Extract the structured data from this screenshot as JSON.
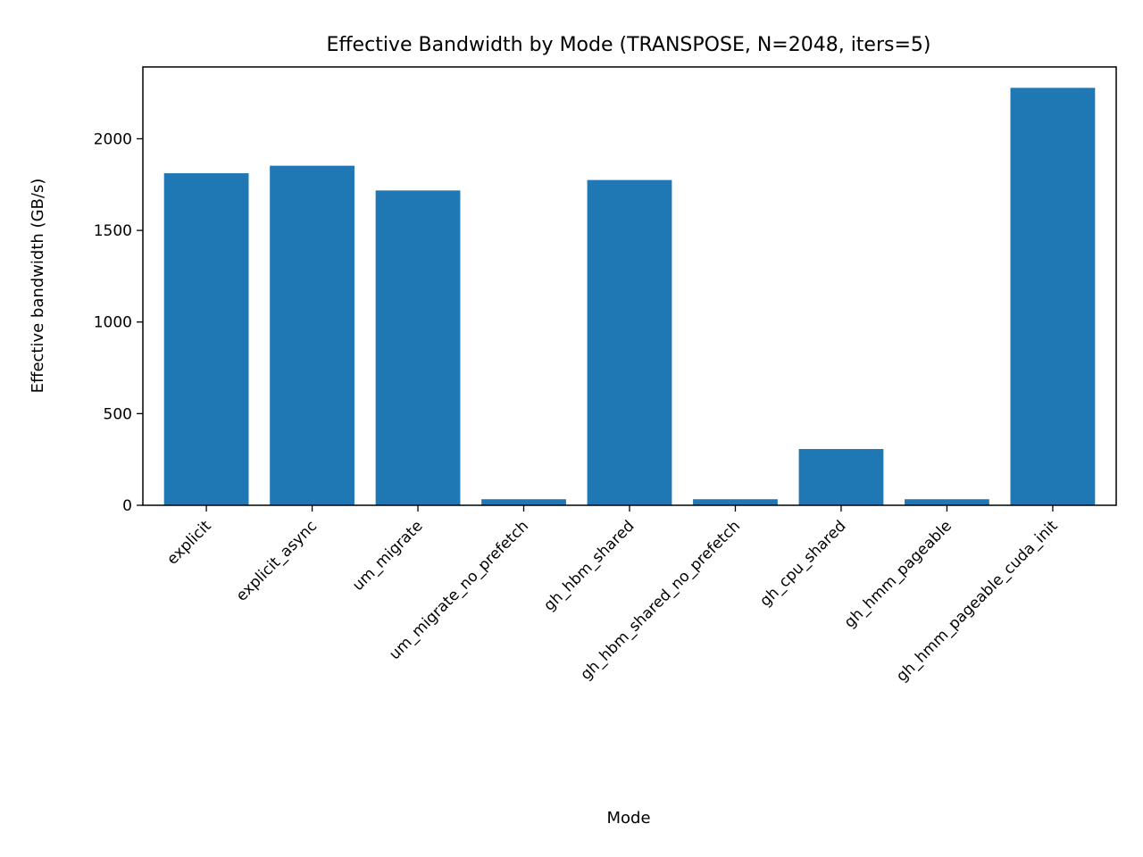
{
  "chart_data": {
    "type": "bar",
    "title": "Effective Bandwidth by Mode (TRANSPOSE, N=2048, iters=5)",
    "xlabel": "Mode",
    "ylabel": "Effective bandwidth (GB/s)",
    "categories": [
      "explicit",
      "explicit_async",
      "um_migrate",
      "um_migrate_no_prefetch",
      "gh_hbm_shared",
      "gh_hbm_shared_no_prefetch",
      "gh_cpu_shared",
      "gh_hmm_pageable",
      "gh_hmm_pageable_cuda_init"
    ],
    "values": [
      1812,
      1853,
      1718,
      33,
      1775,
      33,
      307,
      33,
      2278
    ],
    "ylim": [
      0,
      2392
    ],
    "yticks": [
      0,
      500,
      1000,
      1500,
      2000
    ],
    "grid": false,
    "legend": "none",
    "bar_color": "#1f77b4",
    "axis_color": "#000000"
  }
}
